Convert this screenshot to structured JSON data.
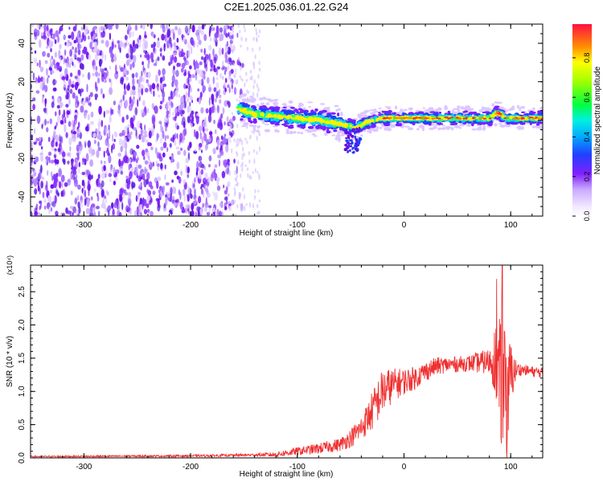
{
  "figure": {
    "title": "C2E1.2025.036.01.22.G24"
  },
  "chart_data": [
    {
      "type": "heatmap",
      "xlabel": "Height of straight line (km)",
      "ylabel": "Frequency (Hz)",
      "xlim": [
        -350,
        130
      ],
      "ylim": [
        -50,
        50
      ],
      "xticks": [
        -300,
        -200,
        -100,
        0,
        100
      ],
      "yticks": [
        -40,
        -20,
        0,
        20,
        40
      ],
      "ridge": {
        "x": [
          -155,
          -140,
          -120,
          -100,
          -80,
          -60,
          -45,
          -35,
          -20,
          0,
          20,
          40,
          60,
          80,
          88,
          95,
          130
        ],
        "y": [
          6,
          3,
          2,
          1,
          0,
          -2,
          -4,
          -1,
          1,
          1,
          1,
          1,
          1,
          1,
          4,
          1,
          1
        ]
      },
      "colorbar": {
        "label": "Normalized spectral amplitude",
        "range": [
          0.0,
          0.97
        ],
        "ticks": [
          0.0,
          0.2,
          0.4,
          0.6,
          0.8
        ],
        "tick_labels": [
          "0.0",
          "0.2",
          "0.4",
          "0.6",
          "0.8"
        ]
      }
    },
    {
      "type": "line",
      "xlabel": "Height of straight line (km)",
      "ylabel": "SNR (10 * v/v)",
      "multiplier": "(x10⁴)",
      "xlim": [
        -350,
        130
      ],
      "ylim": [
        0,
        2.9
      ],
      "xticks": [
        -300,
        -200,
        -100,
        0,
        100
      ],
      "yticks": [
        0.0,
        0.5,
        1.0,
        1.5,
        2.0,
        2.5
      ],
      "ytick_labels": [
        "0.0",
        "0.5",
        "1.0",
        "1.5",
        "2.0",
        "2.5"
      ],
      "series": [
        {
          "color": "#f03030",
          "envelope": {
            "x": [
              -350,
              -200,
              -120,
              -100,
              -80,
              -60,
              -50,
              -40,
              -30,
              -20,
              -10,
              0,
              10,
              20,
              30,
              40,
              60,
              80,
              85,
              90,
              95,
              100,
              105,
              110,
              120,
              130
            ],
            "y": [
              0.02,
              0.03,
              0.05,
              0.1,
              0.14,
              0.2,
              0.3,
              0.45,
              0.7,
              1.0,
              1.1,
              1.15,
              1.2,
              1.3,
              1.38,
              1.4,
              1.42,
              1.45,
              1.5,
              1.2,
              0.8,
              1.25,
              1.32,
              1.33,
              1.3,
              1.28
            ]
          },
          "noise": {
            "x": [
              -350,
              -140,
              -100,
              -60,
              -40,
              -30,
              -20,
              -10,
              0,
              20,
              40,
              60,
              80,
              85,
              90,
              95,
              100,
              105,
              110,
              130
            ],
            "y": [
              0.01,
              0.02,
              0.06,
              0.1,
              0.18,
              0.3,
              0.35,
              0.25,
              0.2,
              0.15,
              0.12,
              0.12,
              0.2,
              0.5,
              0.9,
              1.1,
              0.5,
              0.15,
              0.08,
              0.08
            ]
          }
        }
      ]
    }
  ]
}
